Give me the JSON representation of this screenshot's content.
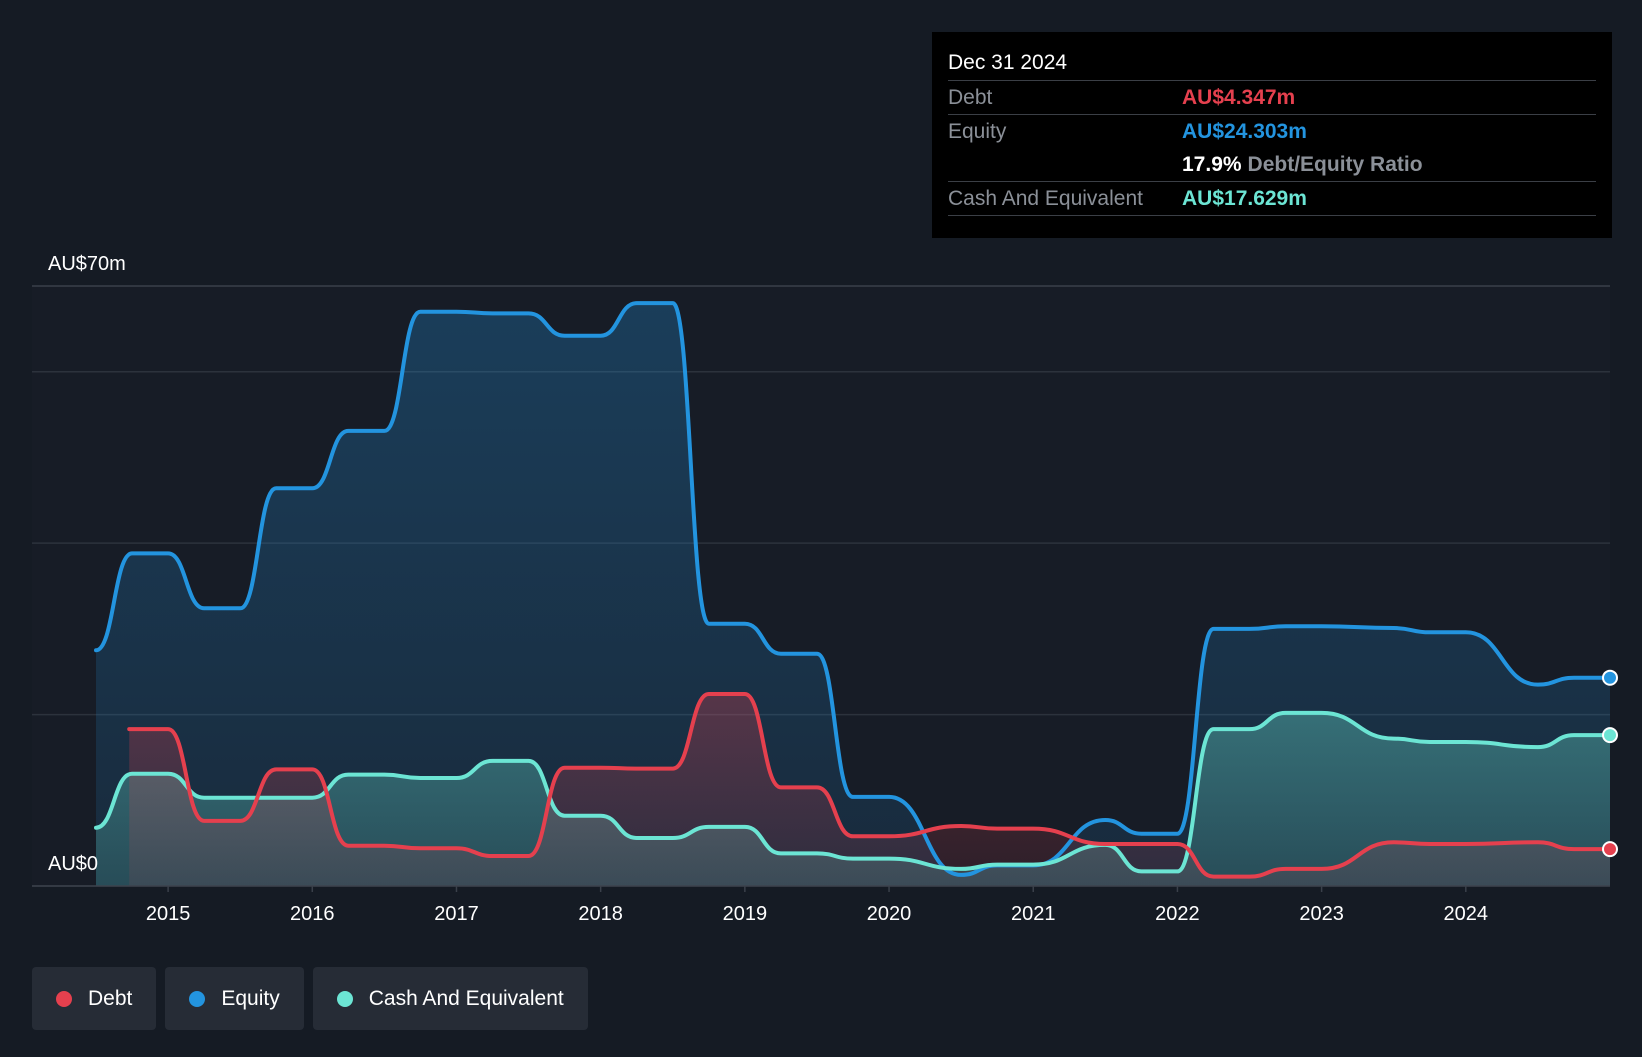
{
  "tooltip": {
    "date": "Dec 31 2024",
    "debt_label": "Debt",
    "debt_value": "AU$4.347m",
    "equity_label": "Equity",
    "equity_value": "AU$24.303m",
    "ratio_value": "17.9%",
    "ratio_label": "Debt/Equity Ratio",
    "cash_label": "Cash And Equivalent",
    "cash_value": "AU$17.629m"
  },
  "legend": [
    {
      "label": "Debt",
      "color": "#e5404e"
    },
    {
      "label": "Equity",
      "color": "#2394df"
    },
    {
      "label": "Cash And Equivalent",
      "color": "#6ce5d4"
    }
  ],
  "colors": {
    "background": "#151b24",
    "plot_background": "#171c26",
    "debt": "#e5404e",
    "equity": "#2394df",
    "cash": "#6ce5d4",
    "grid": "#2c323c"
  },
  "chart_data": {
    "type": "area",
    "y_top_label": "AU$70m",
    "y_bottom_label": "AU$0",
    "ylim": [
      0,
      70
    ],
    "gridlines": [
      0,
      20,
      40,
      60,
      70
    ],
    "xlim": [
      2014.5,
      2025.0
    ],
    "x_ticks": [
      {
        "value": 2015,
        "label": "2015"
      },
      {
        "value": 2016,
        "label": "2016"
      },
      {
        "value": 2017,
        "label": "2017"
      },
      {
        "value": 2018,
        "label": "2018"
      },
      {
        "value": 2019,
        "label": "2019"
      },
      {
        "value": 2020,
        "label": "2020"
      },
      {
        "value": 2021,
        "label": "2021"
      },
      {
        "value": 2022,
        "label": "2022"
      },
      {
        "value": 2023,
        "label": "2023"
      },
      {
        "value": 2024,
        "label": "2024"
      }
    ],
    "series": [
      {
        "name": "Equity",
        "color": "#2394df",
        "points": [
          [
            2014.5,
            27.5
          ],
          [
            2014.75,
            38.8
          ],
          [
            2015.0,
            38.8
          ],
          [
            2015.25,
            32.4
          ],
          [
            2015.5,
            32.4
          ],
          [
            2015.75,
            46.4
          ],
          [
            2016.0,
            46.4
          ],
          [
            2016.25,
            53.1
          ],
          [
            2016.5,
            53.1
          ],
          [
            2016.75,
            67.0
          ],
          [
            2017.0,
            67.0
          ],
          [
            2017.25,
            66.8
          ],
          [
            2017.5,
            66.8
          ],
          [
            2017.75,
            64.2
          ],
          [
            2018.0,
            64.2
          ],
          [
            2018.25,
            68.0
          ],
          [
            2018.5,
            68.0
          ],
          [
            2018.75,
            30.6
          ],
          [
            2019.0,
            30.6
          ],
          [
            2019.25,
            27.1
          ],
          [
            2019.5,
            27.1
          ],
          [
            2019.75,
            10.4
          ],
          [
            2020.0,
            10.4
          ],
          [
            2020.5,
            1.3
          ],
          [
            2020.75,
            2.4
          ],
          [
            2021.0,
            2.4
          ],
          [
            2021.5,
            7.7
          ],
          [
            2021.75,
            6.1
          ],
          [
            2022.0,
            6.1
          ],
          [
            2022.25,
            30.0
          ],
          [
            2022.5,
            30.0
          ],
          [
            2022.75,
            30.3
          ],
          [
            2023.0,
            30.3
          ],
          [
            2023.5,
            30.1
          ],
          [
            2023.75,
            29.6
          ],
          [
            2024.0,
            29.6
          ],
          [
            2024.5,
            23.5
          ],
          [
            2024.75,
            24.3
          ],
          [
            2025.0,
            24.3
          ]
        ]
      },
      {
        "name": "Cash And Equivalent",
        "color": "#6ce5d4",
        "points": [
          [
            2014.5,
            6.8
          ],
          [
            2014.75,
            13.1
          ],
          [
            2015.0,
            13.1
          ],
          [
            2015.25,
            10.3
          ],
          [
            2015.5,
            10.3
          ],
          [
            2015.75,
            10.3
          ],
          [
            2016.0,
            10.3
          ],
          [
            2016.25,
            13.0
          ],
          [
            2016.5,
            13.0
          ],
          [
            2016.75,
            12.6
          ],
          [
            2017.0,
            12.6
          ],
          [
            2017.25,
            14.6
          ],
          [
            2017.5,
            14.6
          ],
          [
            2017.75,
            8.2
          ],
          [
            2018.0,
            8.2
          ],
          [
            2018.25,
            5.6
          ],
          [
            2018.5,
            5.6
          ],
          [
            2018.75,
            6.9
          ],
          [
            2019.0,
            6.9
          ],
          [
            2019.25,
            3.8
          ],
          [
            2019.5,
            3.8
          ],
          [
            2019.75,
            3.2
          ],
          [
            2020.0,
            3.2
          ],
          [
            2020.5,
            2.0
          ],
          [
            2020.75,
            2.5
          ],
          [
            2021.0,
            2.5
          ],
          [
            2021.5,
            4.8
          ],
          [
            2021.75,
            1.7
          ],
          [
            2022.0,
            1.7
          ],
          [
            2022.25,
            18.3
          ],
          [
            2022.5,
            18.3
          ],
          [
            2022.75,
            20.2
          ],
          [
            2023.0,
            20.2
          ],
          [
            2023.5,
            17.2
          ],
          [
            2023.75,
            16.8
          ],
          [
            2024.0,
            16.8
          ],
          [
            2024.5,
            16.2
          ],
          [
            2024.75,
            17.6
          ],
          [
            2025.0,
            17.6
          ]
        ]
      },
      {
        "name": "Debt",
        "color": "#e5404e",
        "points": [
          [
            2014.73,
            18.3
          ],
          [
            2015.0,
            18.3
          ],
          [
            2015.25,
            7.6
          ],
          [
            2015.5,
            7.6
          ],
          [
            2015.75,
            13.6
          ],
          [
            2016.0,
            13.6
          ],
          [
            2016.25,
            4.7
          ],
          [
            2016.5,
            4.7
          ],
          [
            2016.75,
            4.4
          ],
          [
            2017.0,
            4.4
          ],
          [
            2017.25,
            3.5
          ],
          [
            2017.5,
            3.5
          ],
          [
            2017.75,
            13.8
          ],
          [
            2018.0,
            13.8
          ],
          [
            2018.25,
            13.7
          ],
          [
            2018.5,
            13.7
          ],
          [
            2018.75,
            22.4
          ],
          [
            2019.0,
            22.4
          ],
          [
            2019.25,
            11.5
          ],
          [
            2019.5,
            11.5
          ],
          [
            2019.75,
            5.8
          ],
          [
            2020.0,
            5.8
          ],
          [
            2020.5,
            7.0
          ],
          [
            2020.75,
            6.7
          ],
          [
            2021.0,
            6.7
          ],
          [
            2021.5,
            4.9
          ],
          [
            2021.75,
            4.9
          ],
          [
            2022.0,
            4.9
          ],
          [
            2022.25,
            1.1
          ],
          [
            2022.5,
            1.1
          ],
          [
            2022.75,
            2.0
          ],
          [
            2023.0,
            2.0
          ],
          [
            2023.5,
            5.1
          ],
          [
            2023.75,
            4.9
          ],
          [
            2024.0,
            4.9
          ],
          [
            2024.5,
            5.1
          ],
          [
            2024.75,
            4.3
          ],
          [
            2025.0,
            4.3
          ]
        ]
      }
    ]
  }
}
